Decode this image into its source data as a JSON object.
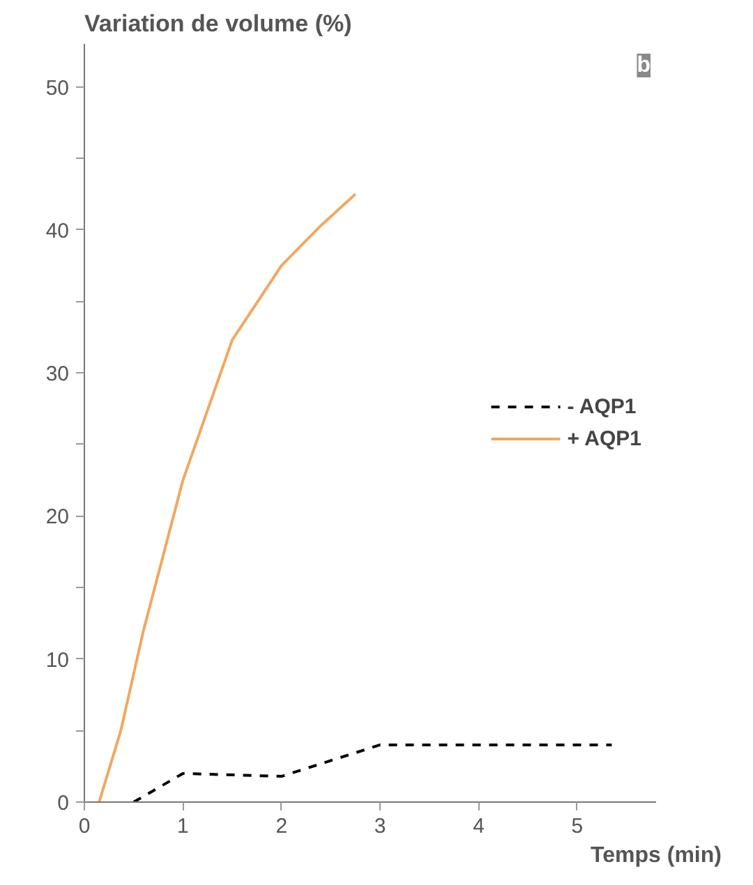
{
  "chart_data": {
    "type": "line",
    "ylabel": "Variation de volume (%)",
    "xlabel": "Temps (min)",
    "annotations": [
      "b"
    ],
    "xlim": [
      0,
      5.8
    ],
    "ylim": [
      0,
      53
    ],
    "xticks": [
      0,
      1,
      2,
      3,
      4,
      5
    ],
    "yticks": [
      0,
      {
        "value": 5,
        "label": null
      },
      10,
      {
        "value": 15,
        "label": null
      },
      20,
      {
        "value": 25,
        "label": null
      },
      30,
      {
        "value": 35,
        "label": null
      },
      40,
      {
        "value": 45,
        "label": null
      },
      50
    ],
    "grid": false,
    "legend": "right",
    "marker": "none",
    "series": [
      {
        "name": "- AQP1",
        "color": "#000000",
        "line_style": "dashed",
        "x": [
          0.5,
          1,
          2,
          3,
          5.35
        ],
        "values": [
          0,
          2,
          1.8,
          4,
          4
        ]
      },
      {
        "name": "+ AQP1",
        "color": "#f0a860",
        "line_style": "solid",
        "x": [
          0.15,
          0.37,
          0.6,
          1,
          1.5,
          2,
          2.4,
          2.75
        ],
        "values": [
          0,
          5,
          12,
          22.5,
          32.3,
          37.5,
          40.3,
          42.5
        ]
      }
    ]
  }
}
